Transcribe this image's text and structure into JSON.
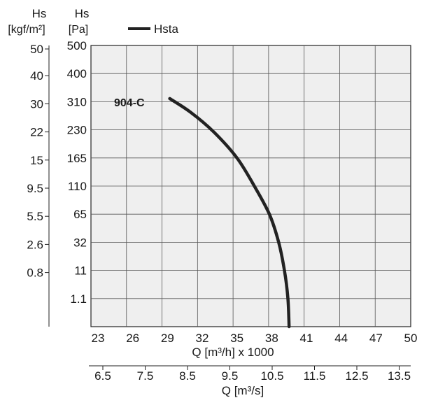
{
  "chart_data": {
    "type": "line",
    "left_axis_outer": {
      "title": "Hs",
      "unit": "[kgf/m²]",
      "tick_labels": [
        "50",
        "40",
        "30",
        "22",
        "15",
        "9.5",
        "5.5",
        "2.6",
        "0.8"
      ]
    },
    "left_axis_inner": {
      "title": "Hs",
      "unit": "[Pa]",
      "tick_labels": [
        "500",
        "400",
        "310",
        "230",
        "165",
        "110",
        "65",
        "32",
        "11",
        "1.1"
      ]
    },
    "x_axis_top": {
      "label": "Q [m³/h] x 1000",
      "tick_labels": [
        "23",
        "26",
        "29",
        "32",
        "35",
        "38",
        "41",
        "44",
        "47",
        "50"
      ],
      "xlim": [
        23,
        50
      ]
    },
    "x_axis_bottom": {
      "label": "Q [m³/s]",
      "tick_labels": [
        "6.5",
        "7.5",
        "8.5",
        "9.5",
        "10.5",
        "11.5",
        "12.5",
        "13.5"
      ]
    },
    "legend": {
      "entries": [
        "Hsta"
      ],
      "position": "top"
    },
    "grid": true,
    "series": [
      {
        "name": "Hsta",
        "label": "904-C",
        "color": "#222222",
        "x": [
          29.2,
          31.0,
          33.0,
          35.0,
          36.5,
          37.8,
          38.6,
          39.1,
          39.4,
          39.5
        ],
        "y": [
          320,
          280,
          225,
          165,
          110,
          65,
          32,
          11,
          1.1,
          0
        ]
      }
    ]
  }
}
